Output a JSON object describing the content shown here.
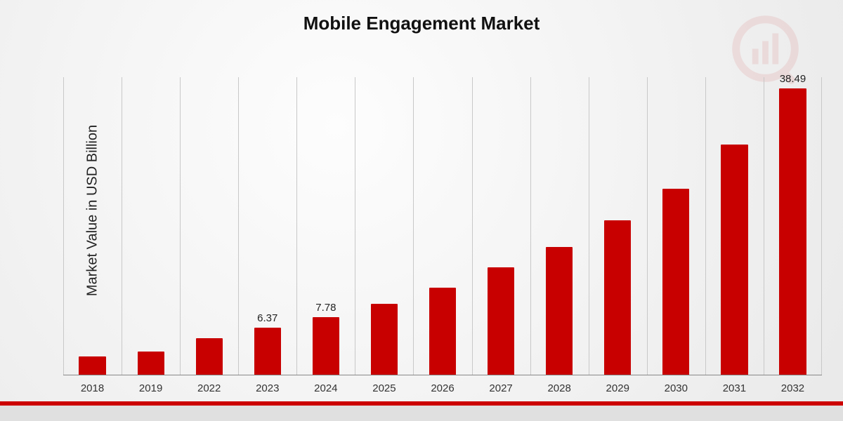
{
  "chart": {
    "type": "bar",
    "title": "Mobile Engagement Market",
    "title_fontsize": 26,
    "ylabel": "Market Value in USD Billion",
    "ylabel_fontsize": 20,
    "categories": [
      "2018",
      "2019",
      "2022",
      "2023",
      "2024",
      "2025",
      "2026",
      "2027",
      "2028",
      "2029",
      "2030",
      "2031",
      "2032"
    ],
    "values": [
      2.5,
      3.2,
      5.0,
      6.37,
      7.78,
      9.6,
      11.8,
      14.5,
      17.2,
      20.8,
      25.0,
      31.0,
      38.49
    ],
    "bar_labels": [
      "",
      "",
      "",
      "6.37",
      "7.78",
      "",
      "",
      "",
      "",
      "",
      "",
      "",
      "38.49"
    ],
    "ymax": 40,
    "bar_color": "#c80000",
    "grid_color": "#c8c8c8",
    "baseline_color": "#888888",
    "bar_width_pct": 46,
    "value_label_fontsize": 15,
    "xlabel_fontsize": 15,
    "background": "radial-gradient #fdfdfd -> #e9e9e9",
    "text_color": "#222222",
    "footer_bar_color": "#cc0000",
    "footer_bg_color": "#e0e0e0",
    "watermark": {
      "ring_color": "#c80000",
      "opacity": 0.08
    }
  }
}
